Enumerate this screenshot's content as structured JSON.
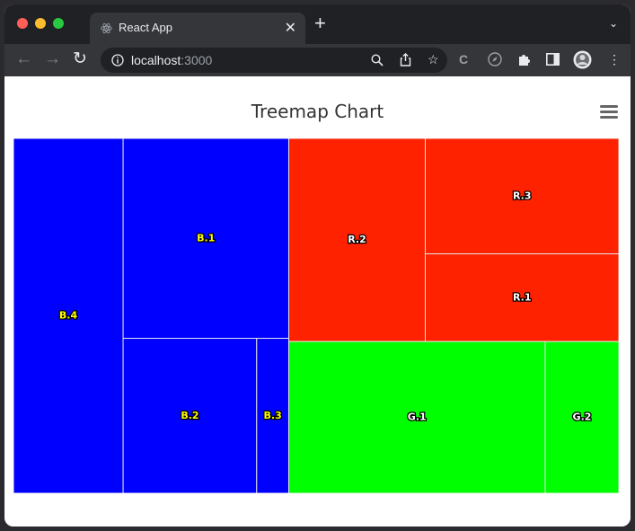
{
  "browser": {
    "tab_title": "React App",
    "tab_close": "✕",
    "new_tab": "+",
    "url_host": "localhost",
    "url_port": ":3000"
  },
  "chart_data": {
    "type": "treemap",
    "title": "Treemap Chart",
    "groups": [
      {
        "name": "B",
        "color": "#0000ff",
        "label_color": "#ffff00"
      },
      {
        "name": "R",
        "color": "#ff2200",
        "label_color": "#ffffff"
      },
      {
        "name": "G",
        "color": "#00ff00",
        "label_color": "#ffffff"
      }
    ],
    "tiles": [
      {
        "name": "B.4",
        "group": "B",
        "value": 94
      },
      {
        "name": "B.1",
        "group": "B",
        "value": 80
      },
      {
        "name": "B.2",
        "group": "B",
        "value": 50
      },
      {
        "name": "B.3",
        "group": "B",
        "value": 12
      },
      {
        "name": "R.2",
        "group": "R",
        "value": 67
      },
      {
        "name": "R.3",
        "group": "R",
        "value": 54
      },
      {
        "name": "R.1",
        "group": "R",
        "value": 41
      },
      {
        "name": "G.1",
        "group": "G",
        "value": 94
      },
      {
        "name": "G.2",
        "group": "G",
        "value": 27
      }
    ]
  }
}
